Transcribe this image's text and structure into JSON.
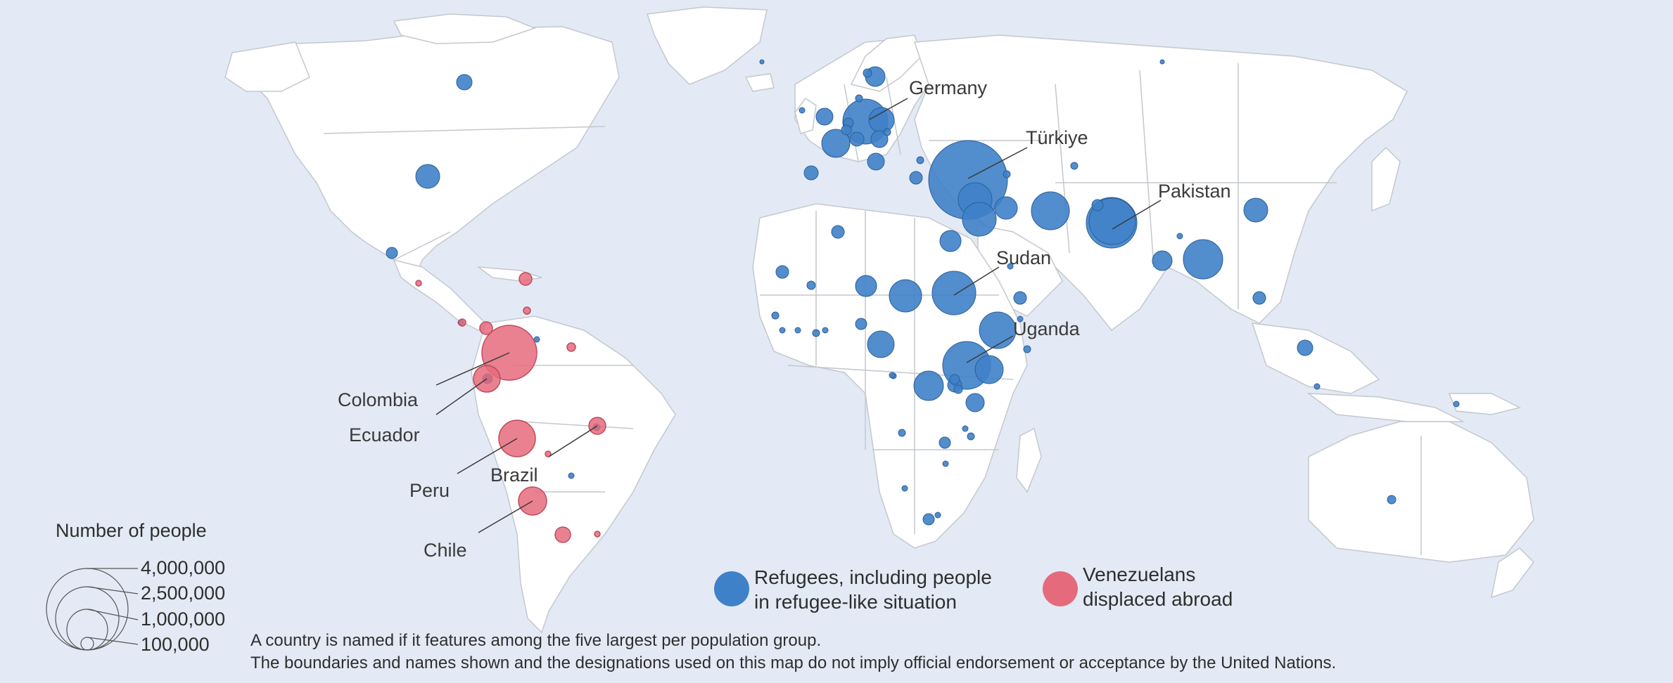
{
  "colors": {
    "ocean": "#e3eaf5",
    "land": "#ffffff",
    "border": "#c4c8ce",
    "refugees": "#3f81c8",
    "venezuelans": "#e56b7c"
  },
  "country_labels": [
    {
      "id": "germany",
      "text": "Germany"
    },
    {
      "id": "turkiye",
      "text": "Türkiye"
    },
    {
      "id": "pakistan",
      "text": "Pakistan"
    },
    {
      "id": "sudan",
      "text": "Sudan"
    },
    {
      "id": "uganda",
      "text": "Uganda"
    },
    {
      "id": "colombia",
      "text": "Colombia"
    },
    {
      "id": "ecuador",
      "text": "Ecuador"
    },
    {
      "id": "peru",
      "text": "Peru"
    },
    {
      "id": "brazil",
      "text": "Brazil"
    },
    {
      "id": "chile",
      "text": "Chile"
    }
  ],
  "legend": {
    "size_title": "Number of people",
    "size_values": [
      "4,000,000",
      "2,500,000",
      "1,000,000",
      "100,000"
    ],
    "refugees_line1": "Refugees, including people",
    "refugees_line2": "in refugee-like situation",
    "venezuelans_line1": "Venezuelans",
    "venezuelans_line2": "displaced abroad"
  },
  "notes": [
    "A country is named if it features among the five largest per population group.",
    "The boundaries and names shown and the designations used on this map do not imply official endorsement or acceptance by the United Nations."
  ]
}
